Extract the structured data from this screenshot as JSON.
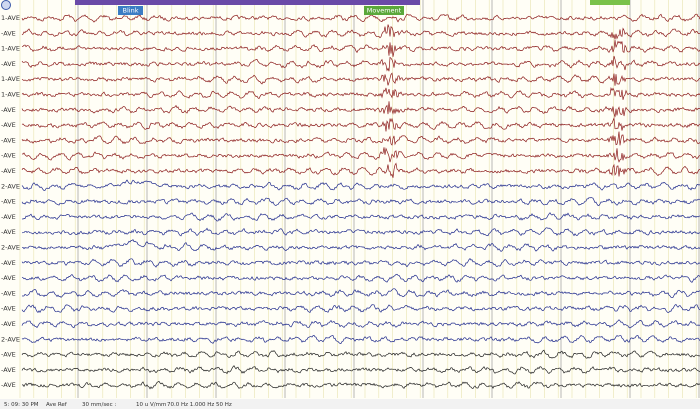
{
  "channel_labels": [
    "1-AVE",
    "-AVE",
    "1-AVE",
    "-AVE",
    "1-AVE",
    "1-AVE",
    "-AVE",
    "-AVE",
    "-AVE",
    "-AVE",
    "-AVE",
    "2-AVE",
    "-AVE",
    "-AVE",
    "-AVE",
    "2-AVE",
    "-AVE",
    "-AVE",
    "-AVE",
    "-AVE",
    "-AVE",
    "2-AVE",
    "-AVE",
    "-AVE",
    "-AVE"
  ],
  "annotations": [
    {
      "label": "Blink"
    },
    {
      "label": "Movement"
    }
  ],
  "status_bar": {
    "time": "5: 09: 30  PM",
    "montage": "Ave Ref",
    "speed": "30 mm/sec :",
    "sensitivity": "10 u V/mm",
    "filters": "70.0 Hz 1.000 Hz 50 Hz"
  }
}
